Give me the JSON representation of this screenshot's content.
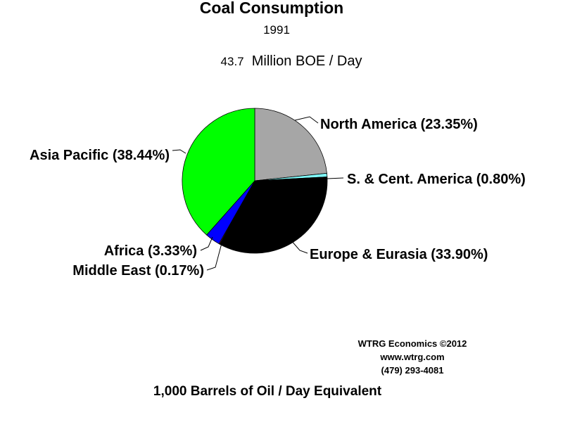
{
  "title": "Coal Consumption",
  "subtitle": "1991",
  "total": {
    "value": "43.7",
    "unit": "Million BOE / Day"
  },
  "footer": "1,000 Barrels of Oil / Day Equivalent",
  "credits": [
    "WTRG Economics  ©2012",
    "www.wtrg.com",
    "(479) 293-4081"
  ],
  "chart_data": {
    "type": "pie",
    "title": "Coal Consumption",
    "subtitle": "1991",
    "categories": [
      "North America",
      "S. & Cent. America",
      "Europe & Eurasia",
      "Middle East",
      "Africa",
      "Asia Pacific"
    ],
    "values": [
      23.35,
      0.8,
      33.9,
      0.17,
      3.33,
      38.44
    ],
    "labels": [
      "North America (23.35%)",
      "S. & Cent. America (0.80%)",
      "Europe & Eurasia (33.90%)",
      "Middle East (0.17%)",
      "Africa (3.33%)",
      "Asia Pacific (38.44%)"
    ],
    "colors": [
      "#a6a6a6",
      "#80ffff",
      "#000000",
      "#ff8080",
      "#0000ff",
      "#00ff00"
    ],
    "unit": "percent",
    "start_angle": "12 o'clock",
    "direction": "clockwise",
    "legend": "none"
  }
}
